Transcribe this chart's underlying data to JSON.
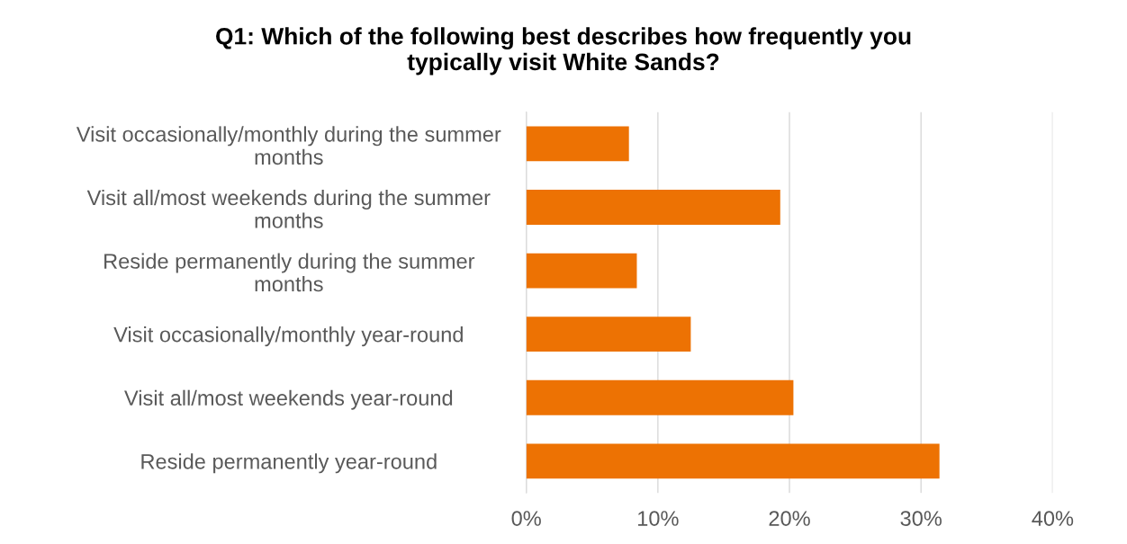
{
  "chart_data": {
    "type": "bar",
    "orientation": "horizontal",
    "title": "Q1: Which of the following best describes how frequently you\ntypically visit White Sands?",
    "categories": [
      "Visit occasionally/monthly during the summer\nmonths",
      "Visit all/most weekends during the summer\nmonths",
      "Reside permanently during the summer\nmonths",
      "Visit occasionally/monthly year-round",
      "Visit all/most weekends year-round",
      "Reside permanently year-round"
    ],
    "values": [
      7.8,
      19.3,
      8.4,
      12.5,
      20.3,
      31.4
    ],
    "color": "#ed7203",
    "xlim": [
      0,
      40
    ],
    "xticks": [
      {
        "value": 0,
        "label": "0%"
      },
      {
        "value": 10,
        "label": "10%"
      },
      {
        "value": 20,
        "label": "20%"
      },
      {
        "value": 30,
        "label": "30%"
      },
      {
        "value": 40,
        "label": "40%"
      }
    ],
    "grid": "x"
  }
}
